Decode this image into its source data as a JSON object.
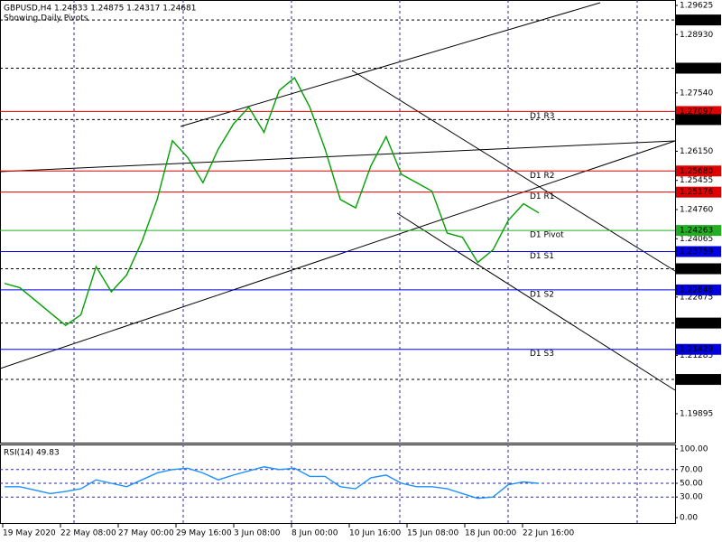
{
  "header": {
    "title": "GBPUSD,H4  1.24833 1.24875 1.24317 1.24681",
    "subtitle": "Showing Daily Pivots"
  },
  "chart_data": [
    {
      "type": "line",
      "color": "#00a000",
      "values": [
        1.23,
        1.229,
        1.226,
        1.223,
        1.22,
        1.2225,
        1.234,
        1.228,
        1.232,
        1.24,
        1.25,
        1.264,
        1.26,
        1.254,
        1.262,
        1.268,
        1.272,
        1.266,
        1.276,
        1.279,
        1.272,
        1.262,
        1.25,
        1.248,
        1.258,
        1.265,
        1.256,
        1.254,
        1.252,
        1.242,
        1.241,
        1.235,
        1.238,
        1.245,
        1.249,
        1.24681
      ],
      "ylim": [
        1.19895,
        1.29625
      ],
      "yticks": [
        1.29625,
        {
          "value": 1.2893,
          "label": "1.28930"
        },
        {
          "value": 1.2754,
          "label": "1.27540"
        },
        {
          "value": 1.2615,
          "label": "1.26150"
        },
        1.25455,
        {
          "value": 1.2476,
          "label": "1.24760"
        },
        1.24065,
        1.22675,
        1.21285,
        1.19895
      ],
      "levels": [
        {
          "value": 1.29278,
          "label": "1.29278",
          "color": "#000000"
        },
        {
          "value": 1.28129,
          "label": "1.28129",
          "color": "#000000"
        },
        {
          "name": "D1 R3",
          "value": 1.27097,
          "label": "1.27097",
          "color": "#e00000"
        },
        {
          "value": 1.26904,
          "label": "1.26904",
          "color": "#000000"
        },
        {
          "name": "D1 R2",
          "value": 1.2568,
          "label": "1.25680",
          "color": "#e00000"
        },
        {
          "name": "D1 R1",
          "value": 1.25176,
          "label": "1.25176",
          "color": "#e00000"
        },
        {
          "name": "D1 Pivot",
          "value": 1.24263,
          "label": "1.24263",
          "color": "#22b022"
        },
        {
          "name": "D1 S1",
          "value": 1.23759,
          "label": "1.23759",
          "color": "#0000e0"
        },
        {
          "value": 1.2335,
          "label": "1.23350",
          "color": "#000000"
        },
        {
          "name": "D1 S2",
          "value": 1.22846,
          "label": "1.22846",
          "color": "#0000e0"
        },
        {
          "value": 1.22056,
          "label": "1.22056",
          "color": "#000000"
        },
        {
          "name": "D1 S3",
          "value": 1.21429,
          "label": "1.21429",
          "color": "#0000e0"
        },
        {
          "value": 1.20712,
          "label": "1.20712",
          "color": "#000000"
        }
      ],
      "xlabels": [
        "19 May 2020",
        "22 May 08:00",
        "27 May 00:00",
        "29 May 16:00",
        "3 Jun 08:00",
        "8 Jun 00:00",
        "10 Jun 16:00",
        "15 Jun 08:00",
        "18 Jun 00:00",
        "22 Jun 16:00"
      ]
    },
    {
      "type": "line",
      "title": "RSI(14) 49.83",
      "color": "#1e90ff",
      "values": [
        45,
        45,
        40,
        35,
        38,
        42,
        55,
        50,
        45,
        55,
        65,
        70,
        72,
        65,
        55,
        62,
        68,
        74,
        70,
        72,
        60,
        60,
        45,
        42,
        58,
        62,
        50,
        45,
        45,
        42,
        35,
        28,
        30,
        48,
        52,
        49.83
      ],
      "ylim": [
        0,
        100
      ],
      "yticks": [
        {
          "value": 100,
          "label": "100.00"
        },
        {
          "value": 70,
          "label": "70.00"
        },
        {
          "value": 50,
          "label": "50.00"
        },
        {
          "value": 30,
          "label": "30.00"
        },
        {
          "value": 0,
          "label": "0.00"
        }
      ]
    }
  ]
}
